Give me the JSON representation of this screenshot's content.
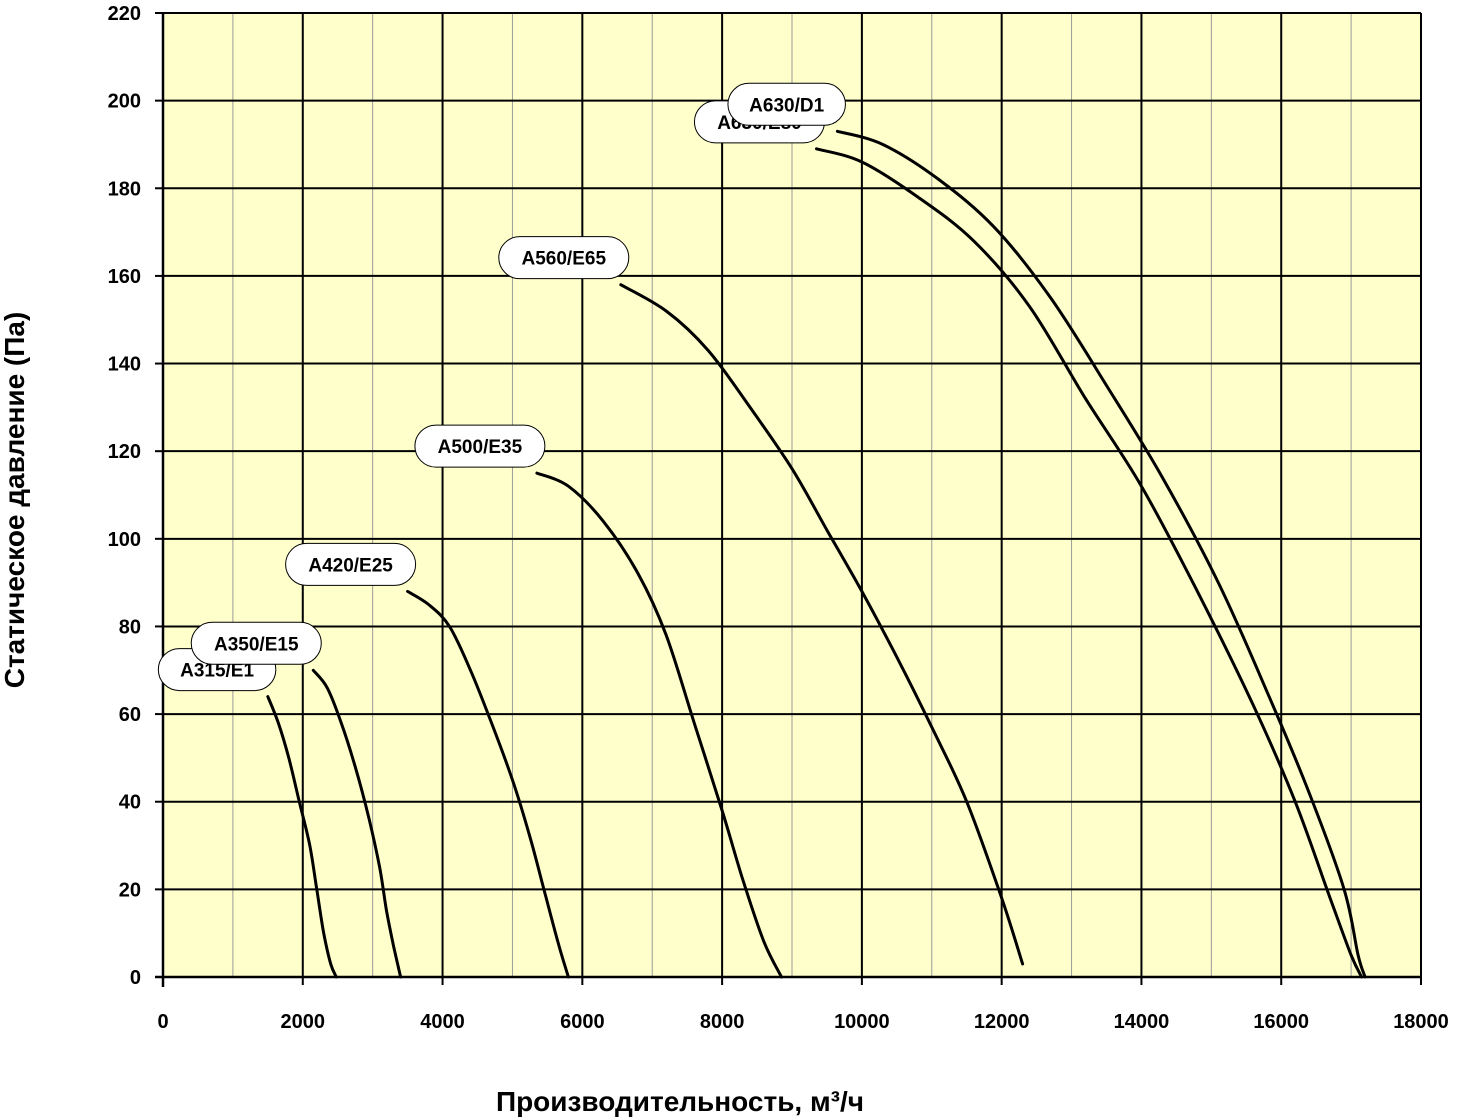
{
  "chart_data": {
    "type": "line",
    "xlabel": "Производительность, м³/ч",
    "ylabel": "Статическое давление (Па)",
    "xlim": [
      0,
      18000
    ],
    "ylim": [
      0,
      220
    ],
    "x_ticks": [
      0,
      2000,
      4000,
      6000,
      8000,
      10000,
      12000,
      14000,
      16000,
      18000
    ],
    "y_ticks": [
      0,
      20,
      40,
      60,
      80,
      100,
      120,
      140,
      160,
      180,
      200,
      220
    ],
    "x_minor_step": 1000,
    "y_major_step": 20,
    "grid": true,
    "plot_background": "#FFFFCC",
    "line_color": "#000000",
    "series": [
      {
        "name": "A315/E1",
        "points": [
          [
            1500,
            64
          ],
          [
            1650,
            58
          ],
          [
            1800,
            50
          ],
          [
            1950,
            40
          ],
          [
            2100,
            30
          ],
          [
            2200,
            20
          ],
          [
            2300,
            10
          ],
          [
            2400,
            3
          ],
          [
            2480,
            0
          ]
        ]
      },
      {
        "name": "A350/E15",
        "points": [
          [
            2150,
            70
          ],
          [
            2350,
            66
          ],
          [
            2550,
            58
          ],
          [
            2750,
            48
          ],
          [
            2950,
            36
          ],
          [
            3100,
            25
          ],
          [
            3200,
            15
          ],
          [
            3300,
            7
          ],
          [
            3400,
            0
          ]
        ]
      },
      {
        "name": "A420/E25",
        "points": [
          [
            3500,
            88
          ],
          [
            3800,
            85
          ],
          [
            4100,
            80
          ],
          [
            4400,
            70
          ],
          [
            4700,
            58
          ],
          [
            5000,
            45
          ],
          [
            5250,
            32
          ],
          [
            5450,
            20
          ],
          [
            5650,
            8
          ],
          [
            5800,
            0
          ]
        ]
      },
      {
        "name": "A500/E35",
        "points": [
          [
            5350,
            115
          ],
          [
            5800,
            112
          ],
          [
            6300,
            104
          ],
          [
            6800,
            92
          ],
          [
            7200,
            78
          ],
          [
            7600,
            58
          ],
          [
            8000,
            38
          ],
          [
            8300,
            22
          ],
          [
            8600,
            8
          ],
          [
            8850,
            0
          ]
        ]
      },
      {
        "name": "A560/E65",
        "points": [
          [
            6550,
            158
          ],
          [
            7200,
            152
          ],
          [
            7800,
            143
          ],
          [
            8400,
            130
          ],
          [
            9000,
            116
          ],
          [
            9500,
            102
          ],
          [
            10000,
            88
          ],
          [
            10500,
            73
          ],
          [
            11000,
            57
          ],
          [
            11500,
            40
          ],
          [
            12000,
            18
          ],
          [
            12300,
            3
          ]
        ]
      },
      {
        "name": "A630/E80",
        "points": [
          [
            9350,
            189
          ],
          [
            10000,
            186
          ],
          [
            10800,
            178
          ],
          [
            11600,
            168
          ],
          [
            12400,
            153
          ],
          [
            13200,
            132
          ],
          [
            14000,
            112
          ],
          [
            14800,
            88
          ],
          [
            15600,
            62
          ],
          [
            16200,
            40
          ],
          [
            16700,
            18
          ],
          [
            17000,
            5
          ],
          [
            17150,
            0
          ]
        ]
      },
      {
        "name": "A630/D1",
        "points": [
          [
            9650,
            193
          ],
          [
            10300,
            190
          ],
          [
            11100,
            182
          ],
          [
            11900,
            171
          ],
          [
            12700,
            155
          ],
          [
            13500,
            135
          ],
          [
            14300,
            114
          ],
          [
            15100,
            90
          ],
          [
            15800,
            65
          ],
          [
            16400,
            42
          ],
          [
            16900,
            20
          ],
          [
            17100,
            5
          ],
          [
            17200,
            0
          ]
        ]
      }
    ]
  }
}
